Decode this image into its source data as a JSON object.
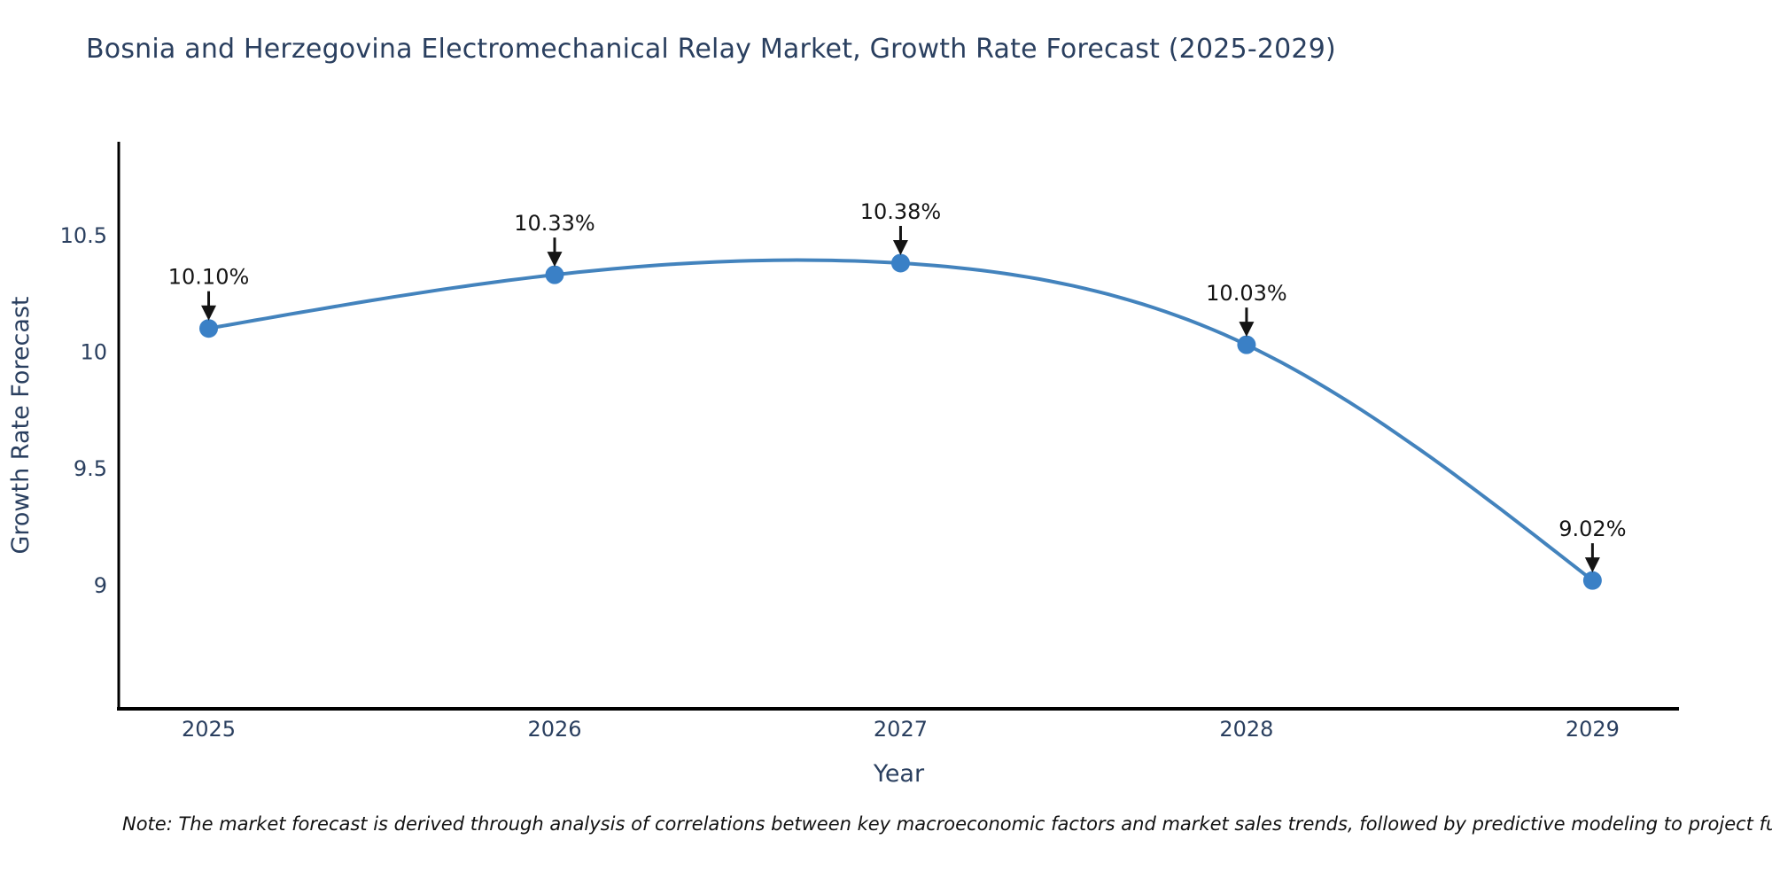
{
  "chart_data": {
    "type": "line",
    "title": "Bosnia and Herzegovina Electromechanical Relay Market, Growth Rate Forecast (2025-2029)",
    "xlabel": "Year",
    "ylabel": "Growth Rate Forecast",
    "x": [
      2025,
      2026,
      2027,
      2028,
      2029
    ],
    "series": [
      {
        "name": "Growth Rate Forecast",
        "values": [
          10.1,
          10.33,
          10.38,
          10.03,
          9.02
        ],
        "point_labels": [
          "10.10%",
          "10.33%",
          "10.38%",
          "10.03%",
          "9.02%"
        ]
      }
    ],
    "x_tick_labels": [
      "2025",
      "2026",
      "2027",
      "2028",
      "2029"
    ],
    "y_tick_values": [
      9,
      9.5,
      10,
      10.5
    ],
    "y_tick_labels": [
      "9",
      "9.5",
      "10",
      "10.5"
    ],
    "xlim": [
      2024.74,
      2029.25
    ],
    "ylim": [
      8.47,
      10.9
    ],
    "grid": false,
    "legend_position": "none",
    "line_shape": "spline",
    "marker": "circle",
    "annotation_style": "black-down-arrow",
    "note": "Note: The market forecast is derived through analysis of correlations between key macroeconomic factors and market sales trends, followed by predictive modeling to project future sal",
    "colors": {
      "line": "#4383bd",
      "marker": "#3a80c6",
      "title_text": "#2a3f5f",
      "axis_text": "#2a3f5f",
      "annotation_text": "#141414",
      "spine": "#000000",
      "background": "#ffffff"
    }
  }
}
